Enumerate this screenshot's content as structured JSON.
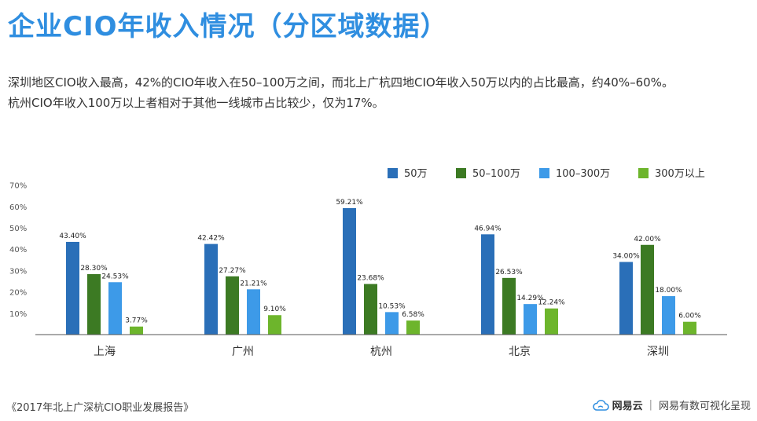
{
  "header": {
    "title": "企业CIO年收入情况（分区域数据）"
  },
  "description": {
    "line1": "深圳地区CIO收入最高，42%的CIO年收入在50–100万之间，而北上广杭四地CIO年收入50万以内的占比最高，约40%–60%。",
    "line2": "杭州CIO年收入100万以上者相对于其他一线城市占比较少，仅为17%。"
  },
  "chart_data": {
    "type": "bar",
    "categories": [
      "上海",
      "广州",
      "杭州",
      "北京",
      "深圳"
    ],
    "series": [
      {
        "name": "50万",
        "color": "#2a6fb8",
        "values": [
          43.4,
          42.42,
          59.21,
          46.94,
          34.0
        ],
        "labels": [
          "43.40%",
          "42.42%",
          "59.21%",
          "46.94%",
          "34.00%"
        ]
      },
      {
        "name": "50–100万",
        "color": "#3c7a23",
        "values": [
          28.3,
          27.27,
          23.68,
          26.53,
          42.0
        ],
        "labels": [
          "28.30%",
          "27.27%",
          "23.68%",
          "26.53%",
          "42.00%"
        ]
      },
      {
        "name": "100–300万",
        "color": "#3d9ae8",
        "values": [
          24.53,
          21.21,
          10.53,
          14.29,
          18.0
        ],
        "labels": [
          "24.53%",
          "21.21%",
          "10.53%",
          "14.29%",
          "18.00%"
        ]
      },
      {
        "name": "300万以上",
        "color": "#6db52c",
        "values": [
          3.77,
          9.1,
          6.58,
          12.24,
          6.0
        ],
        "labels": [
          "3.77%",
          "9.10%",
          "6.58%",
          "12.24%",
          "6.00%"
        ]
      }
    ],
    "yticks": [
      "10%",
      "20%",
      "30%",
      "40%",
      "50%",
      "60%",
      "70%"
    ],
    "ylim": [
      0,
      70
    ],
    "grid": false,
    "legend": "top-right"
  },
  "footer": {
    "source": "《2017年北上广深杭CIO职业发展报告》",
    "brand": "网易云",
    "tagline": "网易有数可视化呈现"
  }
}
